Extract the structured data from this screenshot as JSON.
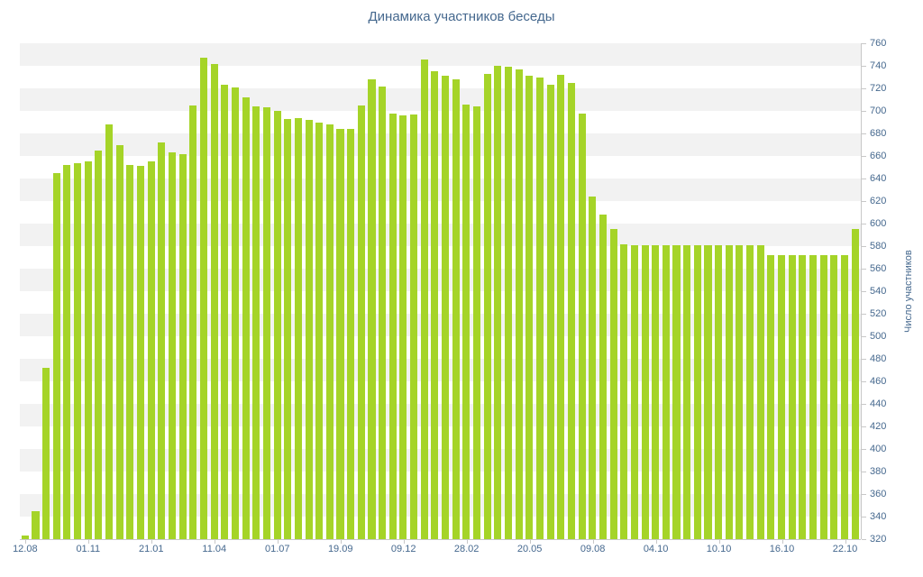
{
  "title": "Динамика участников беседы",
  "colors": {
    "bar": "#a5d428",
    "axis_text": "#45688e",
    "stripe": "#f2f2f2",
    "axis_line": "#c8c8c8"
  },
  "y_axis": {
    "title": "Число участников",
    "min": 320,
    "max": 760,
    "step": 20,
    "tick_labels": [
      "760",
      "740",
      "720",
      "700",
      "680",
      "660",
      "640",
      "620",
      "600",
      "580",
      "560",
      "540",
      "520",
      "500",
      "480",
      "460",
      "440",
      "420",
      "400",
      "380",
      "360",
      "340",
      "320"
    ]
  },
  "x_axis": {
    "tick_labels": [
      "12.08",
      "01.11",
      "21.01",
      "11.04",
      "01.07",
      "19.09",
      "09.12",
      "28.02",
      "20.05",
      "09.08",
      "04.10",
      "10.10",
      "16.10",
      "22.10"
    ],
    "bars_per_label": 6
  },
  "chart_data": {
    "type": "bar",
    "title": "Динамика участников беседы",
    "xlabel": "",
    "ylabel": "Число участников",
    "ylim": [
      320,
      760
    ],
    "grid": "alternating horizontal bands every 20 units",
    "legend": "none",
    "x_tick_labels": [
      "12.08",
      "01.11",
      "21.01",
      "11.04",
      "01.07",
      "19.09",
      "09.12",
      "28.02",
      "20.05",
      "09.08",
      "04.10",
      "10.10",
      "16.10",
      "22.10"
    ],
    "values": [
      323,
      345,
      472,
      645,
      652,
      654,
      655,
      665,
      688,
      670,
      652,
      651,
      655,
      672,
      663,
      662,
      705,
      747,
      742,
      723,
      721,
      712,
      704,
      703,
      700,
      693,
      694,
      692,
      690,
      688,
      684,
      684,
      705,
      728,
      722,
      698,
      696,
      697,
      746,
      735,
      731,
      728,
      706,
      704,
      733,
      740,
      739,
      737,
      731,
      730,
      723,
      732,
      725,
      698,
      624,
      608,
      595,
      582,
      581,
      581,
      581,
      581,
      581,
      581,
      581,
      581,
      581,
      581,
      581,
      581,
      581,
      572,
      572,
      572,
      572,
      572,
      572,
      572,
      572,
      595
    ]
  }
}
